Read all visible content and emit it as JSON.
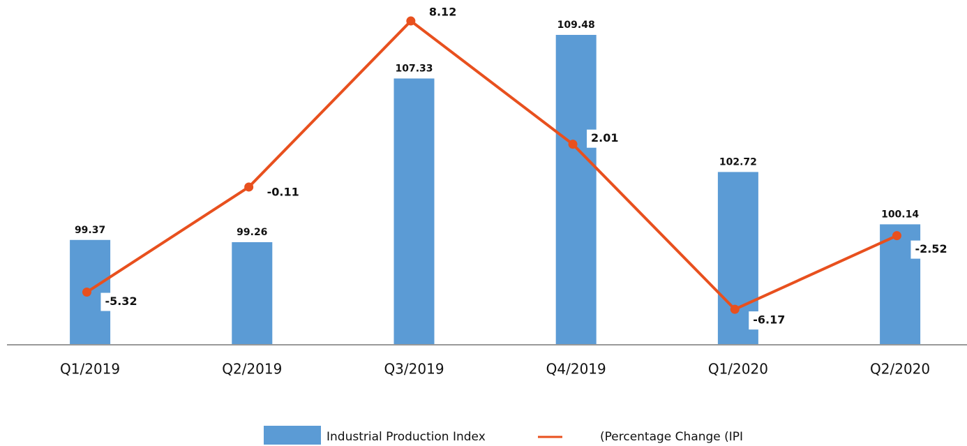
{
  "chart_data": {
    "type": "bar_line",
    "categories": [
      "Q1/2019",
      "Q2/2019",
      "Q3/2019",
      "Q4/2019",
      "Q1/2020",
      "Q2/2020"
    ],
    "series": [
      {
        "name": "Industrial Production Index",
        "type": "bar",
        "color": "#5b9bd5",
        "values": [
          99.37,
          99.26,
          107.33,
          109.48,
          102.72,
          100.14
        ]
      },
      {
        "name": "(Percentage Change (IPI",
        "type": "line",
        "color": "#e8501e",
        "axis": "y2",
        "values": [
          -5.32,
          -0.11,
          8.12,
          2.01,
          -6.17,
          -2.52
        ]
      }
    ],
    "ylim": [
      94.2,
      111.2
    ],
    "y2lim": [
      -7.93,
      9.16
    ],
    "legend": "bottom"
  }
}
